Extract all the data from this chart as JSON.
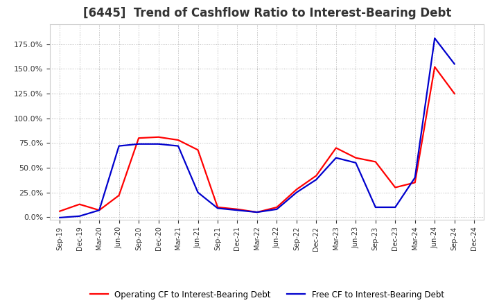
{
  "title": "[6445]  Trend of Cashflow Ratio to Interest-Bearing Debt",
  "x_labels": [
    "Sep-19",
    "Dec-19",
    "Mar-20",
    "Jun-20",
    "Sep-20",
    "Dec-20",
    "Mar-21",
    "Jun-21",
    "Sep-21",
    "Dec-21",
    "Mar-22",
    "Jun-22",
    "Sep-22",
    "Dec-22",
    "Mar-23",
    "Jun-23",
    "Sep-23",
    "Dec-23",
    "Mar-24",
    "Jun-24",
    "Sep-24",
    "Dec-24"
  ],
  "operating_cf": [
    0.06,
    0.13,
    0.07,
    0.22,
    0.8,
    0.81,
    0.78,
    0.68,
    0.1,
    0.08,
    0.05,
    0.1,
    0.28,
    0.42,
    0.7,
    0.6,
    0.56,
    0.3,
    0.35,
    1.52,
    1.25,
    null
  ],
  "free_cf": [
    -0.005,
    0.01,
    0.07,
    0.72,
    0.74,
    0.74,
    0.72,
    0.25,
    0.09,
    0.07,
    0.05,
    0.08,
    0.25,
    0.38,
    0.6,
    0.55,
    0.1,
    0.1,
    0.4,
    1.81,
    1.55,
    null
  ],
  "operating_color": "#ff0000",
  "free_color": "#0000cd",
  "bg_color": "#ffffff",
  "plot_bg_color": "#ffffff",
  "grid_color": "#aaaaaa",
  "title_fontsize": 12,
  "title_fontweight": "bold",
  "title_color": "#333333",
  "yticks": [
    0.0,
    0.25,
    0.5,
    0.75,
    1.0,
    1.25,
    1.5,
    1.75
  ],
  "ylim_min": -0.025,
  "ylim_max": 1.95,
  "legend_labels": [
    "Operating CF to Interest-Bearing Debt",
    "Free CF to Interest-Bearing Debt"
  ],
  "linewidth": 1.6
}
